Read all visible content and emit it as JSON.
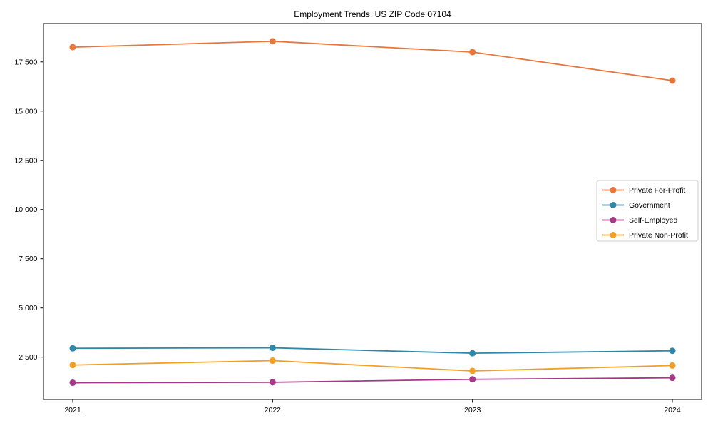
{
  "page": {
    "background": "#ffffff"
  },
  "chart_data": {
    "type": "line",
    "title": "Employment Trends: US ZIP Code 07104",
    "x_labels": [
      "2021",
      "2022",
      "2023",
      "2024"
    ],
    "series": [
      {
        "name": "Private For-Profit",
        "color": "#e8773c",
        "values": [
          18250,
          18550,
          18000,
          16550
        ]
      },
      {
        "name": "Government",
        "color": "#3187a8",
        "values": [
          2950,
          2975,
          2700,
          2825
        ]
      },
      {
        "name": "Self-Employed",
        "color": "#a53987",
        "values": [
          1200,
          1225,
          1375,
          1450
        ]
      },
      {
        "name": "Private Non-Profit",
        "color": "#f1a025",
        "values": [
          2100,
          2325,
          1800,
          2075
        ]
      }
    ],
    "ylim": [
      350,
      19450
    ],
    "yticks": [
      2500,
      5000,
      7500,
      10000,
      12500,
      15000,
      17500
    ],
    "ytick_labels": [
      "2,500",
      "5,000",
      "7,500",
      "10,000",
      "12,500",
      "15,000",
      "17,500"
    ],
    "xlabel": "",
    "ylabel": "",
    "grid": false,
    "marker": "circle",
    "legend": {
      "position": "right-middle",
      "entries": [
        "Private For-Profit",
        "Government",
        "Self-Employed",
        "Private Non-Profit"
      ]
    }
  }
}
